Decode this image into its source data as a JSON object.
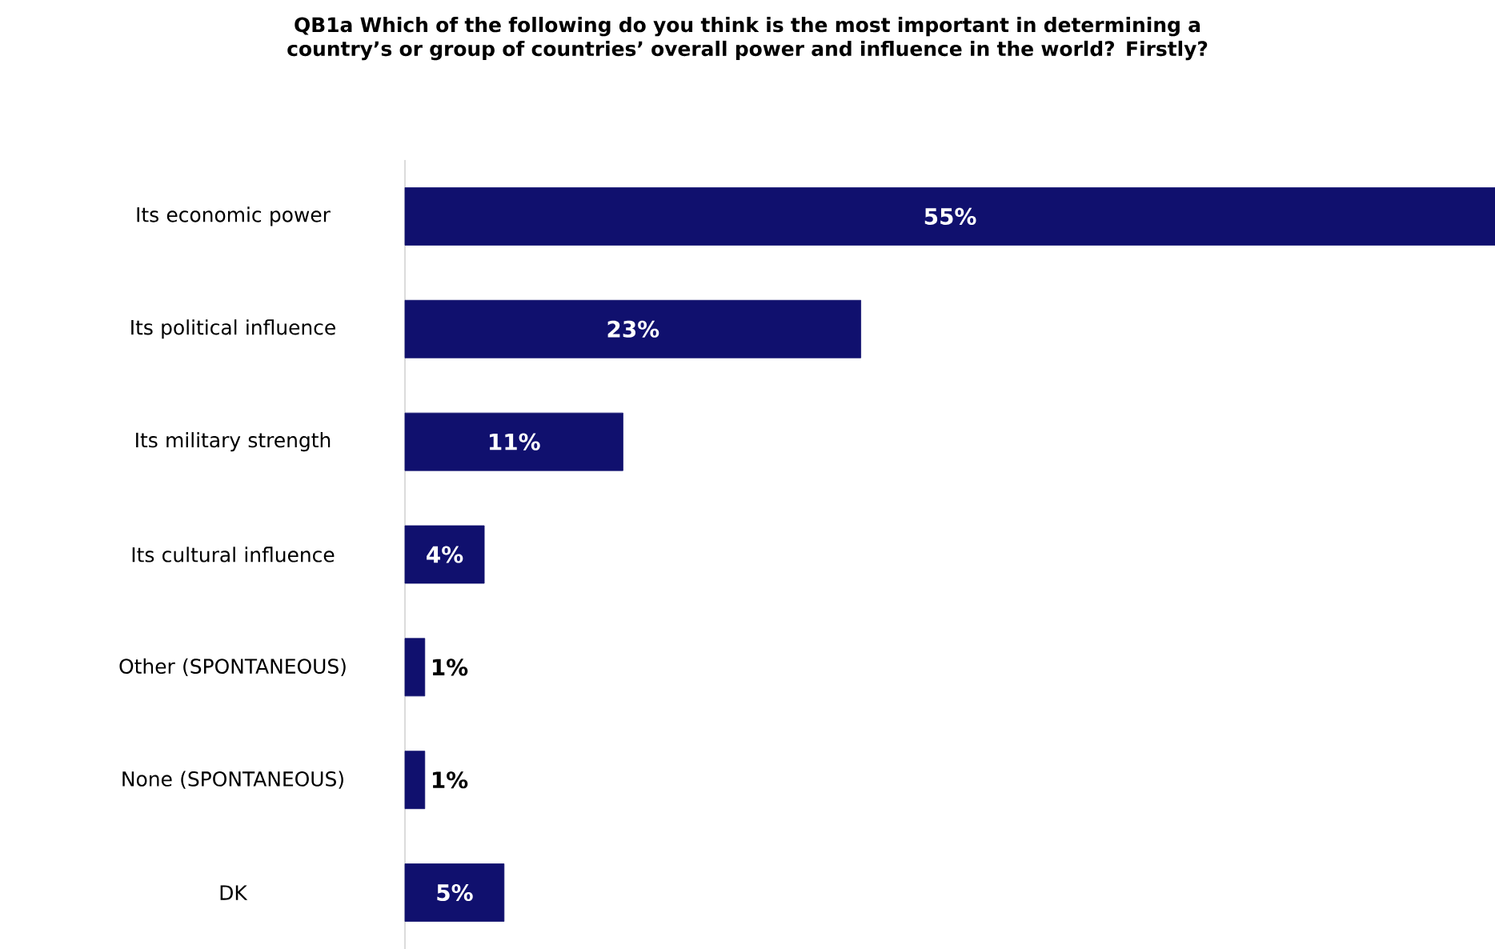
{
  "chart_data": {
    "type": "bar",
    "orientation": "horizontal",
    "title": "QB1a Which of the following do you think is the most important in determining a country’s or group of countries’ overall power and influence in the world? Firstly?",
    "categories": [
      "Its economic power",
      "Its political influence",
      "Its military strength",
      "Its cultural influence",
      "Other (SPONTANEOUS)",
      "None (SPONTANEOUS)",
      "DK"
    ],
    "values": [
      55,
      23,
      11,
      4,
      1,
      1,
      5
    ],
    "value_labels": [
      "55%",
      "23%",
      "11%",
      "4%",
      "1%",
      "1%",
      "5%"
    ],
    "color": "#10106e"
  }
}
